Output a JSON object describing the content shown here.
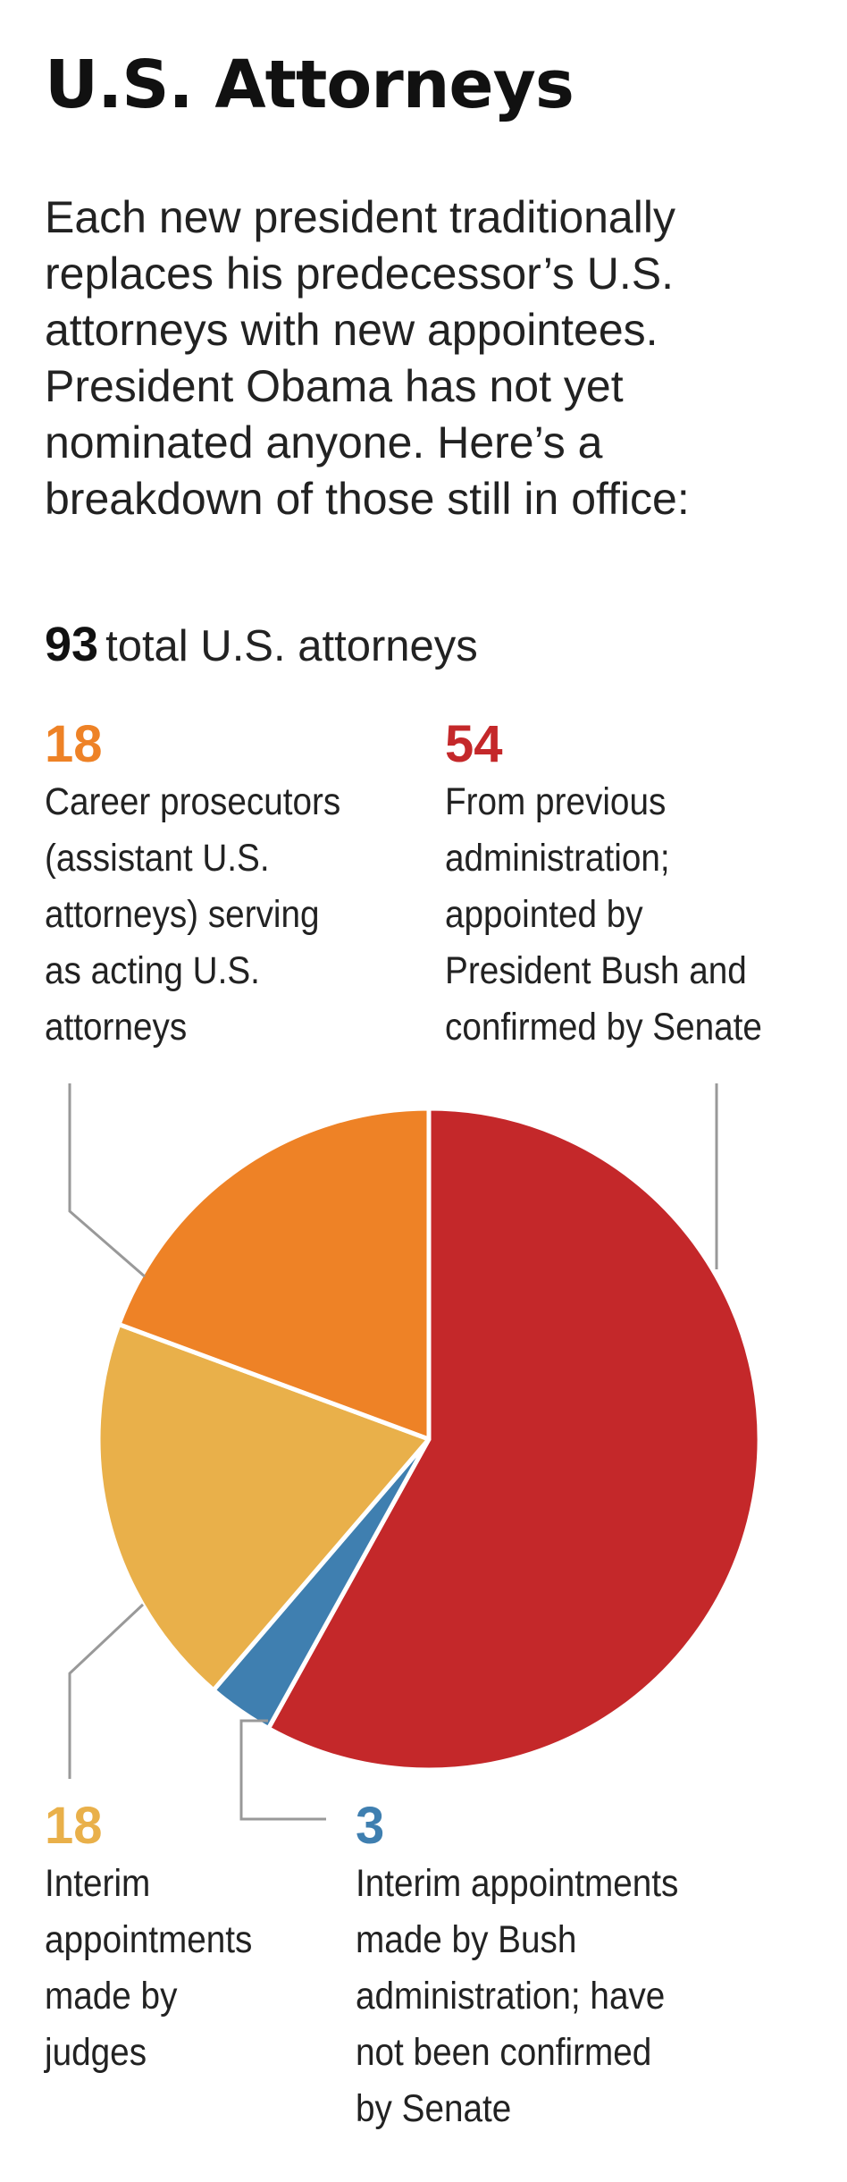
{
  "title": "U.S. Attorneys",
  "intro_lines": [
    "Each new president traditionally",
    "replaces his predecessor’s U.S.",
    "attorneys with new appointees.",
    "President Obama has not yet",
    "nominated anyone. Here’s a",
    "breakdown of those still in office:"
  ],
  "total": {
    "value": "93",
    "label": "total U.S. attorneys"
  },
  "chart_data": {
    "type": "pie",
    "title": "U.S. Attorneys",
    "total": 93,
    "start": "12 o'clock, clockwise",
    "slices": [
      {
        "name": "From previous administration; appointed by President Bush and confirmed by Senate",
        "value": 54,
        "color": "#c4282a"
      },
      {
        "name": "Interim appointments made by Bush administration; have not been confirmed by Senate",
        "value": 3,
        "color": "#3f7fb0"
      },
      {
        "name": "Interim appointments made by judges",
        "value": 18,
        "color": "#e9b04a"
      },
      {
        "name": "Career prosecutors (assistant U.S. attorneys) serving as acting U.S. attorneys",
        "value": 18,
        "color": "#ee8226"
      }
    ]
  },
  "callouts": {
    "career": {
      "value": "18",
      "color": "#ee8226",
      "lines": [
        "Career prosecutors",
        "(assistant U.S.",
        "attorneys) serving",
        "as acting U.S.",
        "attorneys"
      ]
    },
    "previous": {
      "value": "54",
      "color": "#c4282a",
      "lines": [
        "From previous",
        "administration;",
        "appointed by",
        "President Bush and",
        "confirmed by Senate"
      ]
    },
    "judges": {
      "value": "18",
      "color": "#e9b04a",
      "lines": [
        "Interim",
        "appointments",
        "made by",
        "judges"
      ]
    },
    "interim_bush": {
      "value": "3",
      "color": "#3f7fb0",
      "lines": [
        "Interim appointments",
        "made by Bush",
        "administration; have",
        "not been confirmed",
        "by Senate"
      ]
    }
  }
}
